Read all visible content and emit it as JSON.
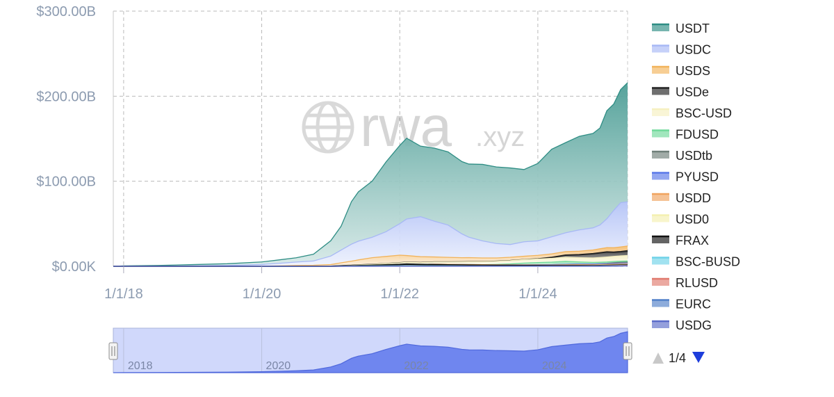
{
  "chart_data": {
    "type": "area",
    "stacked": true,
    "ylim": [
      0,
      300
    ],
    "y_ticks": [
      {
        "value": 0,
        "label": "$0.00K"
      },
      {
        "value": 100,
        "label": "$100.00B"
      },
      {
        "value": 200,
        "label": "$200.00B"
      },
      {
        "value": 300,
        "label": "$300.00B"
      }
    ],
    "x_range": [
      2017.85,
      2025.3
    ],
    "x_ticks": [
      {
        "value": 2018,
        "label": "1/1/18"
      },
      {
        "value": 2020,
        "label": "1/1/20"
      },
      {
        "value": 2022,
        "label": "1/1/22"
      },
      {
        "value": 2024,
        "label": "1/1/24"
      }
    ],
    "grid": true,
    "legend_position": "right",
    "watermark": {
      "word": "rwa",
      "suffix": ".xyz"
    },
    "x": [
      2017.85,
      2018.0,
      2018.5,
      2019.0,
      2019.5,
      2020.0,
      2020.25,
      2020.5,
      2020.75,
      2021.0,
      2021.15,
      2021.3,
      2021.4,
      2021.6,
      2021.8,
      2022.0,
      2022.1,
      2022.3,
      2022.5,
      2022.7,
      2022.9,
      2023.0,
      2023.2,
      2023.4,
      2023.6,
      2023.8,
      2024.0,
      2024.2,
      2024.4,
      2024.6,
      2024.8,
      2024.9,
      2025.0,
      2025.1,
      2025.2,
      2025.3
    ],
    "series": [
      {
        "name": "USDG",
        "color": "#5b6bc9",
        "values": [
          0,
          0,
          0,
          0,
          0,
          0,
          0,
          0,
          0,
          0,
          0,
          0,
          0,
          0,
          0,
          0,
          0,
          0,
          0,
          0,
          0,
          0,
          0,
          0,
          0,
          0,
          0,
          0,
          0,
          0,
          0,
          0,
          0.1,
          0.2,
          0.3,
          0.4
        ]
      },
      {
        "name": "EURC",
        "color": "#4f7fc8",
        "values": [
          0,
          0,
          0,
          0,
          0,
          0,
          0,
          0,
          0,
          0,
          0,
          0,
          0,
          0,
          0.1,
          0.1,
          0.1,
          0.1,
          0.1,
          0.1,
          0.1,
          0.1,
          0.1,
          0.1,
          0.1,
          0.1,
          0.1,
          0.1,
          0.1,
          0.1,
          0.1,
          0.2,
          0.2,
          0.2,
          0.2,
          0.2
        ]
      },
      {
        "name": "RLUSD",
        "color": "#e07a6e",
        "values": [
          0,
          0,
          0,
          0,
          0,
          0,
          0,
          0,
          0,
          0,
          0,
          0,
          0,
          0,
          0,
          0,
          0,
          0,
          0,
          0,
          0,
          0,
          0,
          0,
          0,
          0,
          0,
          0,
          0,
          0,
          0,
          0.1,
          0.2,
          0.3,
          0.4,
          0.5
        ]
      },
      {
        "name": "BSC-BUSD",
        "color": "#6fd2e8",
        "values": [
          0,
          0,
          0,
          0,
          0,
          0,
          0,
          0,
          0,
          0,
          0.2,
          0.3,
          0.4,
          0.5,
          0.5,
          0.5,
          0.5,
          0.5,
          0.5,
          0.5,
          0.4,
          0.3,
          0.3,
          0.2,
          0.2,
          0.2,
          0.2,
          0.2,
          0.2,
          0.2,
          0.2,
          0.2,
          0.2,
          0.2,
          0.2,
          0.2
        ]
      },
      {
        "name": "FRAX",
        "color": "#111111",
        "values": [
          0,
          0,
          0,
          0,
          0,
          0,
          0,
          0,
          0,
          0,
          0.1,
          0.2,
          0.3,
          0.6,
          1.0,
          1.5,
          2.0,
          1.5,
          1.2,
          1.0,
          0.9,
          0.9,
          0.8,
          0.7,
          0.6,
          0.5,
          0.5,
          0.4,
          0.4,
          0.4,
          0.3,
          0.3,
          0.3,
          0.3,
          0.3,
          0.3
        ]
      },
      {
        "name": "USD0",
        "color": "#f4f0b0",
        "values": [
          0,
          0,
          0,
          0,
          0,
          0,
          0,
          0,
          0,
          0,
          0,
          0,
          0,
          0,
          0,
          0,
          0,
          0,
          0,
          0,
          0,
          0,
          0,
          0,
          0,
          0,
          0,
          0,
          0.3,
          0.5,
          0.5,
          0.5,
          0.5,
          0.5,
          0.5,
          0.5
        ]
      },
      {
        "name": "USDD",
        "color": "#f0a35e",
        "values": [
          0,
          0,
          0,
          0,
          0,
          0,
          0,
          0,
          0,
          0,
          0,
          0,
          0,
          0,
          0,
          0,
          0,
          0,
          0.7,
          0.7,
          0.7,
          0.7,
          0.7,
          0.7,
          0.7,
          0.7,
          0.7,
          0.7,
          0.7,
          0.7,
          0.7,
          0.7,
          0.7,
          0.7,
          0.7,
          0.7
        ]
      },
      {
        "name": "PYUSD",
        "color": "#5a78e8",
        "values": [
          0,
          0,
          0,
          0,
          0,
          0,
          0,
          0,
          0,
          0,
          0,
          0,
          0,
          0,
          0,
          0,
          0,
          0,
          0,
          0,
          0,
          0,
          0,
          0,
          0.2,
          0.3,
          0.4,
          0.5,
          0.6,
          0.7,
          0.8,
          0.8,
          0.8,
          0.8,
          0.8,
          0.8
        ]
      },
      {
        "name": "USDtb",
        "color": "#6e7e78",
        "values": [
          0,
          0,
          0,
          0,
          0,
          0,
          0,
          0,
          0,
          0,
          0,
          0,
          0,
          0,
          0,
          0,
          0,
          0,
          0,
          0,
          0,
          0,
          0,
          0,
          0,
          0,
          0,
          0,
          0,
          0,
          0,
          0.2,
          0.5,
          1.0,
          1.3,
          1.4
        ]
      },
      {
        "name": "FDUSD",
        "color": "#6fd99a",
        "values": [
          0,
          0,
          0,
          0,
          0,
          0,
          0,
          0,
          0,
          0,
          0,
          0,
          0,
          0,
          0,
          0,
          0,
          0,
          0,
          0,
          0,
          0,
          0,
          0.5,
          1.0,
          2.0,
          2.5,
          3.0,
          3.5,
          2.5,
          2.0,
          1.8,
          1.6,
          1.4,
          1.3,
          1.2
        ]
      },
      {
        "name": "BSC-USD",
        "color": "#f6f0c0",
        "values": [
          0,
          0,
          0,
          0,
          0,
          0,
          0,
          0,
          0,
          0,
          0.3,
          0.5,
          0.8,
          1.0,
          1.5,
          2.0,
          2.0,
          2.2,
          2.5,
          2.7,
          3.0,
          3.2,
          3.4,
          3.6,
          3.8,
          4.0,
          4.2,
          4.5,
          4.8,
          5.0,
          5.2,
          5.5,
          5.8,
          6.0,
          6.2,
          6.5
        ]
      },
      {
        "name": "USDe",
        "color": "#222222",
        "values": [
          0,
          0,
          0,
          0,
          0,
          0,
          0,
          0,
          0,
          0,
          0,
          0,
          0,
          0,
          0,
          0,
          0,
          0,
          0,
          0,
          0,
          0,
          0,
          0,
          0,
          0,
          0.1,
          1.0,
          2.5,
          3.5,
          5.0,
          5.5,
          6.0,
          5.0,
          5.0,
          5.5
        ]
      },
      {
        "name": "USDS",
        "color": "#f2b35a",
        "values": [
          0,
          0,
          0,
          0,
          0,
          0.1,
          0.5,
          1.0,
          1.2,
          2.0,
          3.5,
          5.0,
          6.0,
          8.0,
          8.5,
          9.0,
          8.0,
          7.0,
          6.0,
          5.5,
          5.0,
          5.0,
          4.5,
          4.0,
          4.0,
          4.0,
          4.2,
          4.2,
          4.2,
          4.2,
          4.4,
          4.8,
          5.0,
          5.2,
          5.6,
          5.6
        ]
      },
      {
        "name": "USDC",
        "color": "#a7b8f5",
        "values": [
          0,
          0,
          0,
          0.5,
          1.0,
          2.0,
          3.0,
          4.0,
          5.0,
          10.0,
          15.0,
          20.0,
          22.0,
          24.0,
          29.0,
          37.0,
          43.0,
          47.0,
          42.0,
          38.0,
          28.0,
          24.0,
          20.0,
          17.0,
          15.0,
          17.0,
          17.0,
          20.0,
          22.0,
          25.0,
          26.0,
          28.0,
          34.0,
          44.0,
          52.0,
          52.0
        ]
      },
      {
        "name": "USDT",
        "color": "#2e8d84",
        "values": [
          0,
          0.5,
          1.0,
          1.5,
          2.0,
          3.0,
          4.0,
          5.0,
          8.0,
          18.0,
          28.0,
          50.0,
          58.0,
          66.0,
          82.0,
          92.0,
          95.0,
          83.0,
          86.0,
          86.0,
          85.0,
          86.0,
          90.0,
          90.0,
          90.0,
          85.0,
          91.0,
          103.0,
          106.0,
          110.0,
          111.0,
          114.0,
          127.0,
          125.0,
          133.0,
          140.0
        ]
      }
    ],
    "navigator": {
      "x_ticks": [
        {
          "value": 2018,
          "label": "2018"
        },
        {
          "value": 2020,
          "label": "2020"
        },
        {
          "value": 2022,
          "label": "2022"
        },
        {
          "value": 2024,
          "label": "2024"
        }
      ]
    },
    "legend_pager": {
      "label": "1/4"
    }
  }
}
